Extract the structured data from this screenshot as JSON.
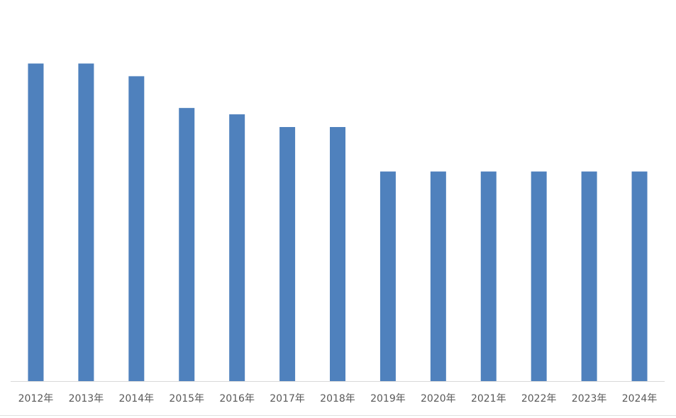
{
  "chart_data": {
    "type": "bar",
    "categories": [
      "2012年",
      "2013年",
      "2014年",
      "2015年",
      "2016年",
      "2017年",
      "2018年",
      "2019年",
      "2020年",
      "2021年",
      "2022年",
      "2023年",
      "2024年"
    ],
    "values": [
      25,
      25,
      24,
      21.5,
      21,
      20,
      20,
      16.5,
      16.5,
      16.5,
      16.5,
      16.5,
      16.5
    ],
    "color": "#4f81bd",
    "ylim": [
      0,
      30
    ]
  }
}
